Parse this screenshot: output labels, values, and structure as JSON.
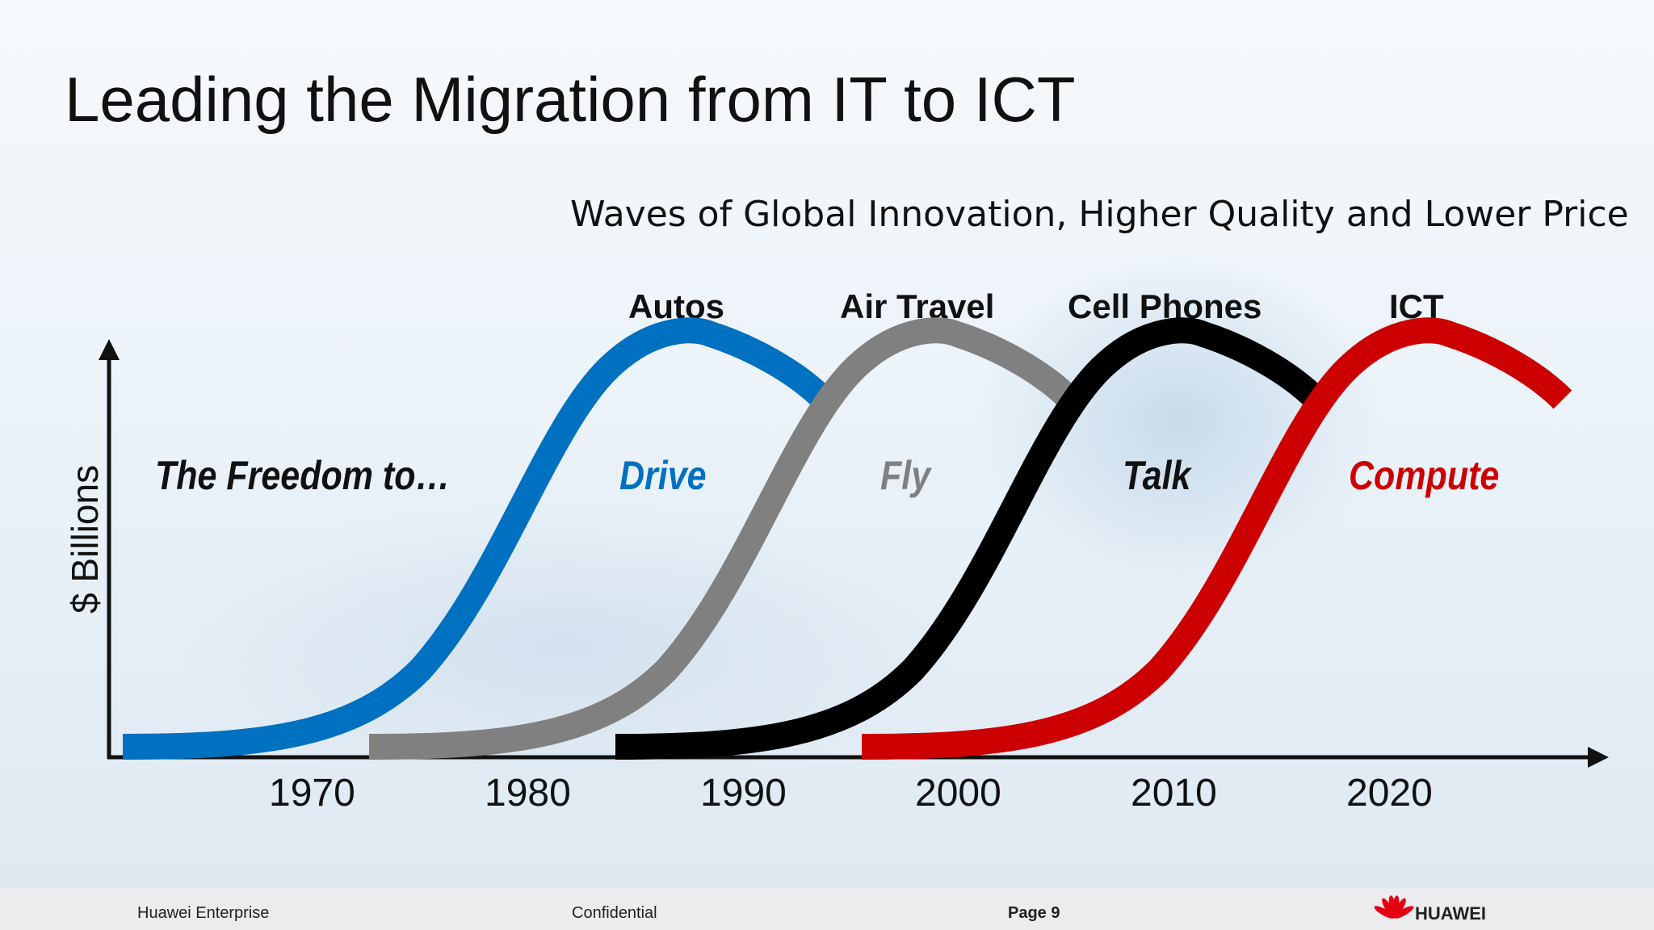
{
  "title": "Leading the Migration from IT to ICT",
  "subtitle": "Waves of Global Innovation, Higher Quality and Lower Price",
  "intro": "The Freedom to…",
  "y_axis_label": "$ Billions",
  "x_ticks": [
    "1970",
    "1980",
    "1990",
    "2000",
    "2010",
    "2020"
  ],
  "waves": [
    {
      "label": "Autos",
      "verb": "Drive",
      "color": "#0070C0"
    },
    {
      "label": "Air Travel",
      "verb": "Fly",
      "color": "#808080"
    },
    {
      "label": "Cell Phones",
      "verb": "Talk",
      "color": "#000000"
    },
    {
      "label": "ICT",
      "verb": "Compute",
      "color": "#CC0000"
    }
  ],
  "footer": {
    "left": "Huawei Enterprise",
    "center": "Confidential",
    "page": "Page 9",
    "brand": "HUAWEI"
  },
  "colors": {
    "axis": "#111111",
    "footer_bg": "#ececee",
    "brand_red": "#E60012"
  }
}
